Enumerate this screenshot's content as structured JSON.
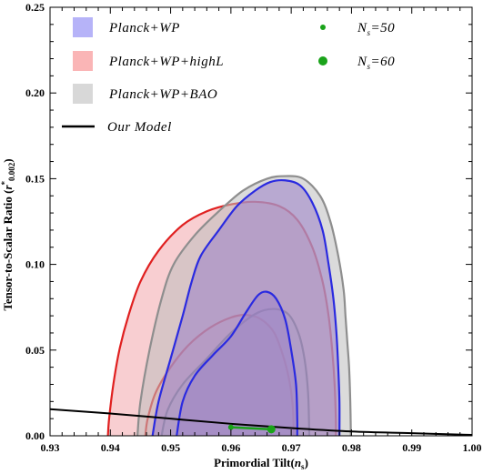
{
  "chart_data": {
    "type": "area",
    "title": "",
    "xlabel": "Primordial Tilt",
    "xlabel_symbol": "n",
    "xlabel_sub": "s",
    "ylabel": "Tensor-to-Scalar Ratio",
    "ylabel_symbol": "r",
    "ylabel_sup": "*",
    "ylabel_sub": "0.002",
    "xlim": [
      0.93,
      1.0
    ],
    "ylim": [
      0.0,
      0.25
    ],
    "x_ticks": [
      0.93,
      0.94,
      0.95,
      0.96,
      0.97,
      0.98,
      0.99,
      1.0
    ],
    "x_tick_labels": [
      "0.93",
      "0.94",
      "0.95",
      "0.96",
      "0.97",
      "0.98",
      "0.99",
      "1.00"
    ],
    "y_ticks": [
      0.0,
      0.05,
      0.1,
      0.15,
      0.2,
      0.25
    ],
    "y_tick_labels": [
      "0.00",
      "0.05",
      "0.10",
      "0.15",
      "0.20",
      "0.25"
    ],
    "grid": false,
    "legend_placement": "top",
    "series": [
      {
        "name": "Planck+WP+highL",
        "kind": "contour",
        "fill": "#f2a6ab",
        "stroke": "#e02020",
        "levels": [
          [
            [
              0.9396,
              0.0
            ],
            [
              0.9398,
              0.01
            ],
            [
              0.9405,
              0.03
            ],
            [
              0.9415,
              0.05
            ],
            [
              0.943,
              0.07
            ],
            [
              0.945,
              0.09
            ],
            [
              0.948,
              0.108
            ],
            [
              0.952,
              0.123
            ],
            [
              0.956,
              0.131
            ],
            [
              0.96,
              0.135
            ],
            [
              0.964,
              0.1365
            ],
            [
              0.968,
              0.134
            ],
            [
              0.971,
              0.126
            ],
            [
              0.9735,
              0.11
            ],
            [
              0.9752,
              0.09
            ],
            [
              0.9762,
              0.07
            ],
            [
              0.9768,
              0.05
            ],
            [
              0.9772,
              0.03
            ],
            [
              0.9774,
              0.01
            ],
            [
              0.9774,
              0.0
            ]
          ],
          [
            [
              0.9458,
              0.0
            ],
            [
              0.9462,
              0.01
            ],
            [
              0.9475,
              0.025
            ],
            [
              0.95,
              0.04
            ],
            [
              0.953,
              0.053
            ],
            [
              0.9565,
              0.063
            ],
            [
              0.96,
              0.069
            ],
            [
              0.9625,
              0.0705
            ],
            [
              0.965,
              0.068
            ],
            [
              0.9672,
              0.06
            ],
            [
              0.9688,
              0.045
            ],
            [
              0.9698,
              0.03
            ],
            [
              0.9703,
              0.015
            ],
            [
              0.9704,
              0.0
            ]
          ]
        ]
      },
      {
        "name": "Planck+WP+BAO",
        "kind": "contour",
        "fill": "#bebebe",
        "stroke": "#8e8e8e",
        "levels": [
          [
            [
              0.9445,
              0.0
            ],
            [
              0.945,
              0.02
            ],
            [
              0.9465,
              0.05
            ],
            [
              0.9485,
              0.08
            ],
            [
              0.9505,
              0.1
            ],
            [
              0.954,
              0.117
            ],
            [
              0.958,
              0.131
            ],
            [
              0.962,
              0.143
            ],
            [
              0.966,
              0.15
            ],
            [
              0.969,
              0.1515
            ],
            [
              0.972,
              0.15
            ],
            [
              0.9748,
              0.14
            ],
            [
              0.9765,
              0.125
            ],
            [
              0.9778,
              0.105
            ],
            [
              0.9787,
              0.085
            ],
            [
              0.979,
              0.07
            ],
            [
              0.9793,
              0.055
            ],
            [
              0.9796,
              0.04
            ],
            [
              0.9798,
              0.02
            ],
            [
              0.9799,
              0.0
            ]
          ],
          [
            [
              0.9485,
              0.0
            ],
            [
              0.9495,
              0.015
            ],
            [
              0.952,
              0.03
            ],
            [
              0.956,
              0.045
            ],
            [
              0.96,
              0.06
            ],
            [
              0.964,
              0.071
            ],
            [
              0.967,
              0.074
            ],
            [
              0.9695,
              0.071
            ],
            [
              0.9712,
              0.06
            ],
            [
              0.9722,
              0.045
            ],
            [
              0.9728,
              0.025
            ],
            [
              0.973,
              0.0
            ]
          ]
        ]
      },
      {
        "name": "Planck+WP",
        "kind": "contour",
        "fill": "#9a7fc8",
        "stroke": "#2a2ae0",
        "levels": [
          [
            [
              0.947,
              0.0
            ],
            [
              0.948,
              0.02
            ],
            [
              0.95,
              0.045
            ],
            [
              0.952,
              0.07
            ],
            [
              0.9535,
              0.09
            ],
            [
              0.955,
              0.105
            ],
            [
              0.958,
              0.12
            ],
            [
              0.961,
              0.134
            ],
            [
              0.964,
              0.143
            ],
            [
              0.9665,
              0.148
            ],
            [
              0.969,
              0.149
            ],
            [
              0.9715,
              0.146
            ],
            [
              0.9735,
              0.136
            ],
            [
              0.9752,
              0.12
            ],
            [
              0.9762,
              0.1
            ],
            [
              0.977,
              0.08
            ],
            [
              0.9775,
              0.06
            ],
            [
              0.9778,
              0.04
            ],
            [
              0.978,
              0.02
            ],
            [
              0.978,
              0.0
            ]
          ],
          [
            [
              0.951,
              0.0
            ],
            [
              0.952,
              0.02
            ],
            [
              0.954,
              0.035
            ],
            [
              0.957,
              0.047
            ],
            [
              0.96,
              0.058
            ],
            [
              0.9625,
              0.072
            ],
            [
              0.9645,
              0.082
            ],
            [
              0.966,
              0.084
            ],
            [
              0.9675,
              0.08
            ],
            [
              0.969,
              0.068
            ],
            [
              0.97,
              0.05
            ],
            [
              0.9708,
              0.03
            ],
            [
              0.971,
              0.01
            ],
            [
              0.971,
              0.0
            ]
          ]
        ]
      },
      {
        "name": "Our Model",
        "kind": "line",
        "stroke": "#000000",
        "points": [
          [
            0.93,
            0.0155
          ],
          [
            0.94,
            0.013
          ],
          [
            0.95,
            0.01
          ],
          [
            0.96,
            0.007
          ],
          [
            0.97,
            0.0045
          ],
          [
            0.98,
            0.0025
          ],
          [
            0.99,
            0.0015
          ],
          [
            1.0,
            0.0005
          ]
        ]
      },
      {
        "name": "N_s=50",
        "kind": "point",
        "fill": "#1aa31a",
        "points": [
          [
            0.96,
            0.005
          ]
        ]
      },
      {
        "name": "N_s=60",
        "kind": "point",
        "fill": "#1aa31a",
        "points": [
          [
            0.9667,
            0.0038
          ]
        ]
      }
    ],
    "green_segment": [
      [
        0.96,
        0.005
      ],
      [
        0.9667,
        0.0038
      ]
    ],
    "legend": [
      {
        "label": "Planck+WP",
        "kind": "box",
        "color": "#b6b3f8"
      },
      {
        "label": "Planck+WP+highL",
        "kind": "box",
        "color": "#fab5b6"
      },
      {
        "label": "Planck+WP+BAO",
        "kind": "box",
        "color": "#d8d8d8"
      },
      {
        "label": "Our Model",
        "kind": "line",
        "color": "#000000"
      },
      {
        "label_main": "N",
        "label_sub": "s",
        "label_rest": "=50",
        "kind": "dot-small",
        "color": "#1aa31a"
      },
      {
        "label_main": "N",
        "label_sub": "s",
        "label_rest": "=60",
        "kind": "dot-large",
        "color": "#1aa31a"
      }
    ]
  }
}
